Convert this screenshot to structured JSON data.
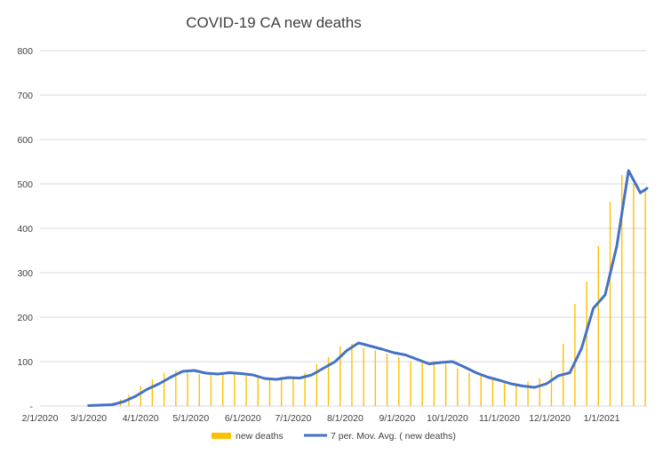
{
  "chart_data": {
    "type": "bar",
    "title": "COVID-19 CA new deaths",
    "xlabel": "",
    "ylabel": "",
    "ylim": [
      0,
      800
    ],
    "y_ticks": [
      0,
      100,
      200,
      300,
      400,
      500,
      600,
      700,
      800
    ],
    "y_tick_labels": [
      "-",
      "100",
      "200",
      "300",
      "400",
      "500",
      "600",
      "700",
      "800"
    ],
    "x_tick_labels": [
      "2/1/2020",
      "3/1/2020",
      "4/1/2020",
      "5/1/2020",
      "6/1/2020",
      "7/1/2020",
      "8/1/2020",
      "9/1/2020",
      "10/1/2020",
      "11/1/2020",
      "12/1/2020",
      "1/1/2021"
    ],
    "x_range": [
      "2/1/2020",
      "1/28/2021"
    ],
    "grid": true,
    "legend_position": "bottom",
    "series": [
      {
        "name": "new deaths",
        "type": "bar",
        "color": "#FFC000",
        "x": [
          "3/1/2020",
          "3/16/2020",
          "3/20/2020",
          "3/25/2020",
          "4/1/2020",
          "4/8/2020",
          "4/15/2020",
          "4/22/2020",
          "4/29/2020",
          "5/6/2020",
          "5/13/2020",
          "5/20/2020",
          "5/27/2020",
          "6/3/2020",
          "6/10/2020",
          "6/17/2020",
          "6/24/2020",
          "7/1/2020",
          "7/8/2020",
          "7/15/2020",
          "7/22/2020",
          "7/29/2020",
          "8/5/2020",
          "8/12/2020",
          "8/19/2020",
          "8/26/2020",
          "9/2/2020",
          "9/9/2020",
          "9/16/2020",
          "9/23/2020",
          "9/30/2020",
          "10/7/2020",
          "10/14/2020",
          "10/21/2020",
          "10/28/2020",
          "11/4/2020",
          "11/11/2020",
          "11/18/2020",
          "11/25/2020",
          "12/2/2020",
          "12/9/2020",
          "12/16/2020",
          "12/23/2020",
          "12/30/2020",
          "1/6/2021",
          "1/13/2021",
          "1/20/2021",
          "1/27/2021"
        ],
        "values": [
          2,
          8,
          15,
          25,
          45,
          60,
          75,
          80,
          75,
          72,
          70,
          74,
          72,
          68,
          64,
          62,
          66,
          65,
          75,
          95,
          110,
          135,
          140,
          130,
          125,
          118,
          110,
          100,
          98,
          100,
          95,
          85,
          75,
          68,
          60,
          52,
          48,
          55,
          62,
          80,
          140,
          230,
          280,
          360,
          460,
          520,
          500,
          490
        ]
      },
      {
        "name": "7 per. Mov. Avg. ( new deaths)",
        "type": "line",
        "color": "#4472C4",
        "x": [
          "3/1/2020",
          "3/15/2020",
          "3/22/2020",
          "3/29/2020",
          "4/5/2020",
          "4/12/2020",
          "4/19/2020",
          "4/26/2020",
          "5/3/2020",
          "5/10/2020",
          "5/17/2020",
          "5/24/2020",
          "5/31/2020",
          "6/7/2020",
          "6/14/2020",
          "6/21/2020",
          "6/28/2020",
          "7/5/2020",
          "7/12/2020",
          "7/19/2020",
          "7/26/2020",
          "8/2/2020",
          "8/9/2020",
          "8/16/2020",
          "8/23/2020",
          "8/30/2020",
          "9/6/2020",
          "9/13/2020",
          "9/20/2020",
          "9/27/2020",
          "10/4/2020",
          "10/11/2020",
          "10/18/2020",
          "10/25/2020",
          "11/1/2020",
          "11/8/2020",
          "11/15/2020",
          "11/22/2020",
          "11/29/2020",
          "12/6/2020",
          "12/13/2020",
          "12/20/2020",
          "12/27/2020",
          "1/3/2021",
          "1/10/2021",
          "1/17/2021",
          "1/24/2021",
          "1/28/2021"
        ],
        "values": [
          1,
          3,
          10,
          22,
          38,
          50,
          65,
          78,
          80,
          74,
          72,
          75,
          73,
          70,
          62,
          60,
          64,
          63,
          70,
          85,
          100,
          125,
          142,
          135,
          128,
          120,
          115,
          105,
          95,
          98,
          100,
          88,
          75,
          65,
          58,
          50,
          45,
          42,
          50,
          68,
          75,
          130,
          220,
          250,
          360,
          530,
          480,
          490
        ]
      }
    ]
  }
}
